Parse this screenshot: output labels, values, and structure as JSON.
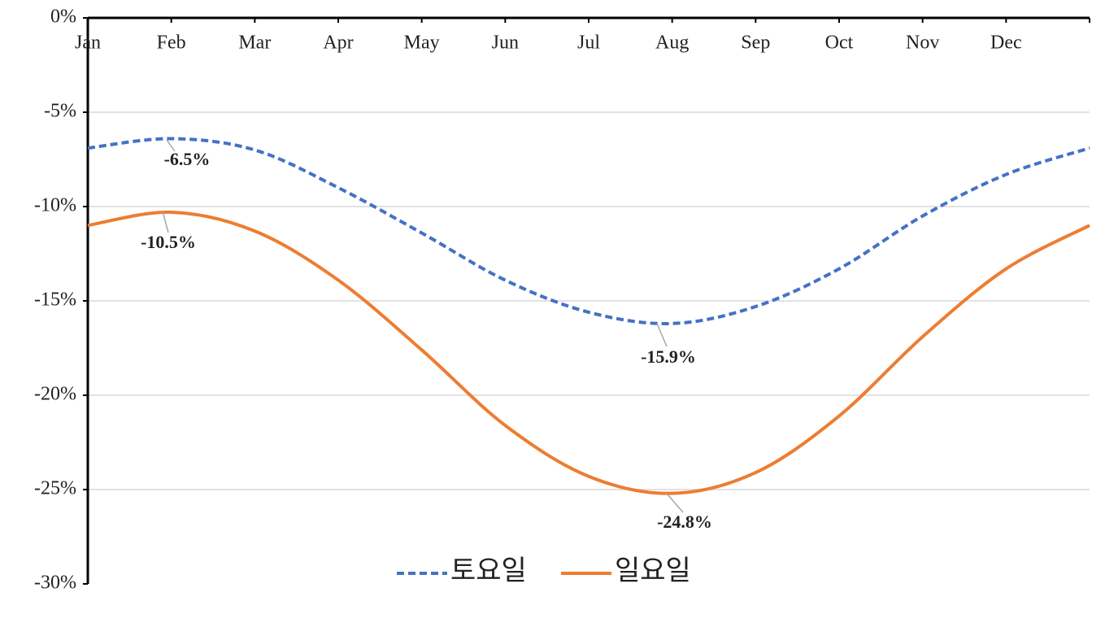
{
  "chart_data": {
    "type": "line",
    "categories": [
      "Jan",
      "Feb",
      "Mar",
      "Apr",
      "May",
      "Jun",
      "Jul",
      "Aug",
      "Sep",
      "Oct",
      "Nov",
      "Dec",
      null
    ],
    "series": [
      {
        "name": "토요일",
        "color": "#4472c4",
        "dash": true,
        "values": [
          -6.9,
          -6.4,
          -7.0,
          -9.0,
          -11.4,
          -13.9,
          -15.6,
          -16.2,
          -15.3,
          -13.3,
          -10.5,
          -8.3,
          -6.9
        ]
      },
      {
        "name": "일요일",
        "color": "#ed7d31",
        "dash": false,
        "values": [
          -11.0,
          -10.3,
          -11.3,
          -13.9,
          -17.6,
          -21.6,
          -24.3,
          -25.2,
          -24.1,
          -21.1,
          -16.9,
          -13.3,
          -11.0
        ]
      }
    ],
    "annotations": [
      "-6.5%",
      "-10.5%",
      "-15.9%",
      "-24.8%"
    ],
    "ylim": [
      -30,
      0
    ],
    "yticks": [
      {
        "value": 0,
        "label": "0%"
      },
      {
        "value": -5,
        "label": "-5%"
      },
      {
        "value": -10,
        "label": "-10%"
      },
      {
        "value": -15,
        "label": "-15%"
      },
      {
        "value": -20,
        "label": "-20%"
      },
      {
        "value": -25,
        "label": "-25%"
      },
      {
        "value": -30,
        "label": "-30%"
      }
    ],
    "grid": true
  }
}
